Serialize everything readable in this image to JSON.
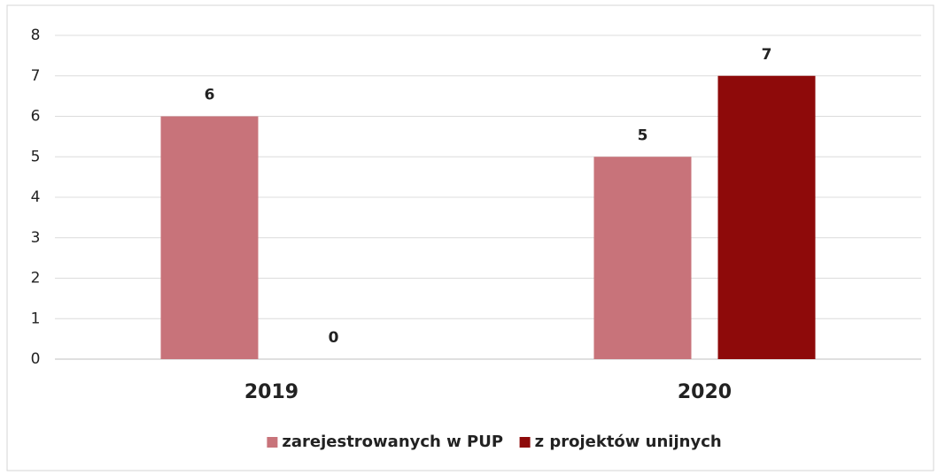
{
  "chart_data": {
    "type": "bar",
    "categories": [
      "2019",
      "2020"
    ],
    "series": [
      {
        "name": "zarejestrowanych w PUP",
        "color": "#c8737a",
        "values": [
          6,
          5
        ]
      },
      {
        "name": "z projektów unijnych",
        "color": "#8e0a0a",
        "values": [
          0,
          7
        ]
      }
    ],
    "ylim": [
      0,
      8
    ],
    "yticks": [
      0,
      1,
      2,
      3,
      4,
      5,
      6,
      7,
      8
    ],
    "grid": true,
    "legend": "bottom"
  }
}
